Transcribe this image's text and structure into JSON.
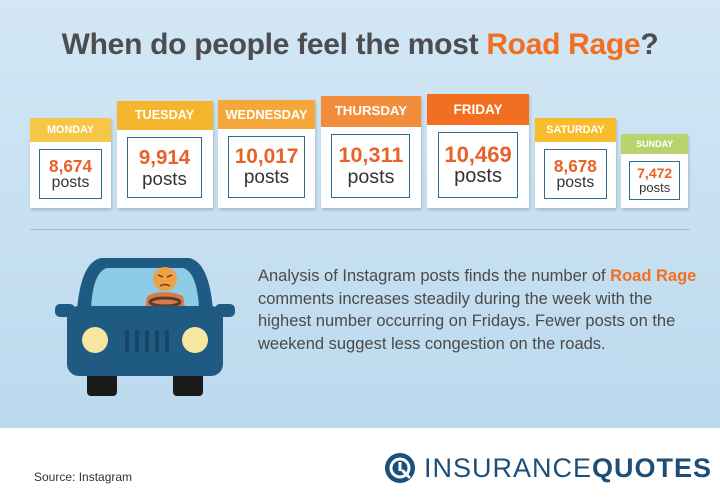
{
  "title": {
    "prefix": "When do people feel the most ",
    "accent": "Road Rage",
    "suffix": "?"
  },
  "chart_data": {
    "type": "bar",
    "categories": [
      "MONDAY",
      "TUESDAY",
      "WEDNESDAY",
      "THURSDAY",
      "FRIDAY",
      "SATURDAY",
      "SUNDAY"
    ],
    "values": [
      8674,
      9914,
      10017,
      10311,
      10469,
      8678,
      7472
    ],
    "value_labels": [
      "8,674",
      "9,914",
      "10,017",
      "10,311",
      "10,469",
      "8,678",
      "7,472"
    ],
    "unit": "posts",
    "colors": [
      "#f6c747",
      "#f5b52e",
      "#f4a73a",
      "#f28e3b",
      "#f26f21",
      "#f7bd2c",
      "#b8d36d"
    ]
  },
  "description": {
    "part1": "Analysis of Instagram posts finds the number of ",
    "accent": "Road Rage",
    "part2": " comments increases steadily during the week with the highest number occurring on Fridays. Fewer posts on the weekend suggest less congestion on the roads."
  },
  "footer": {
    "source": "Source: Instagram",
    "logo_light": "INSURANCE",
    "logo_bold": "QUOTES"
  },
  "colors": {
    "accent": "#f26f21",
    "car_body": "#1f5a82",
    "logo": "#1b4f7a"
  }
}
